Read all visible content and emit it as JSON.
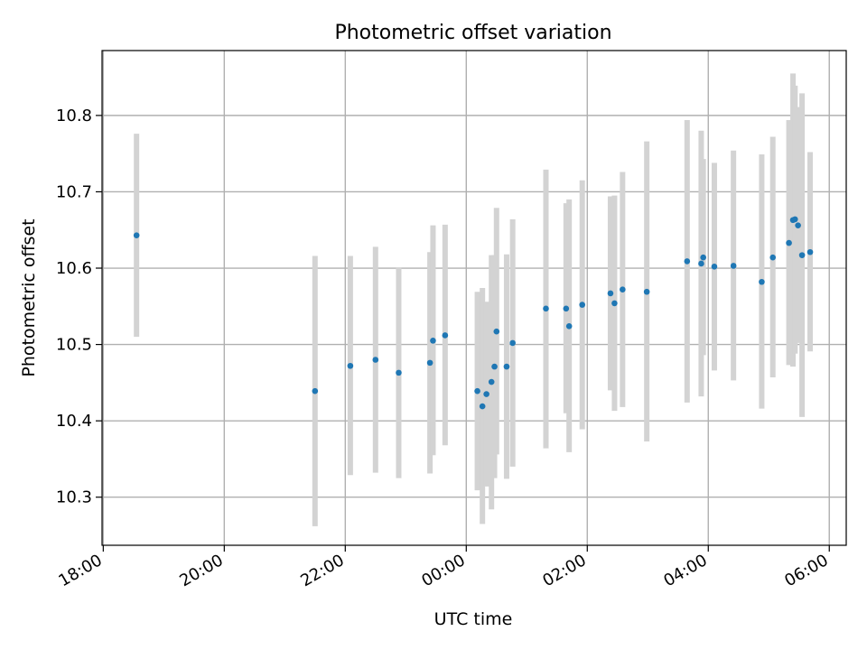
{
  "chart_data": {
    "type": "scatter",
    "title": "Photometric offset variation",
    "xlabel": "UTC time",
    "ylabel": "Photometric offset",
    "x_tick_labels": [
      "18:00",
      "20:00",
      "22:00",
      "00:00",
      "02:00",
      "04:00",
      "06:00"
    ],
    "x_tick_hours": [
      0,
      2,
      4,
      6,
      8,
      10,
      12
    ],
    "x_origin": "18:00",
    "xlim_hours": [
      -0.02,
      12.28
    ],
    "y_ticks": [
      10.3,
      10.4,
      10.5,
      10.6,
      10.7,
      10.8
    ],
    "ylim": [
      10.237,
      10.885
    ],
    "grid": true,
    "colors": {
      "points": "#1f77b4",
      "errorbars": "#d3d3d3",
      "grid": "#b0b0b0"
    },
    "points": [
      {
        "t": "18:33",
        "y": 10.643,
        "lo": 10.51,
        "hi": 10.776
      },
      {
        "t": "21:30",
        "y": 10.439,
        "lo": 10.262,
        "hi": 10.616
      },
      {
        "t": "22:05",
        "y": 10.472,
        "lo": 10.329,
        "hi": 10.616
      },
      {
        "t": "22:30",
        "y": 10.48,
        "lo": 10.332,
        "hi": 10.628
      },
      {
        "t": "22:53",
        "y": 10.463,
        "lo": 10.325,
        "hi": 10.601
      },
      {
        "t": "23:24",
        "y": 10.476,
        "lo": 10.331,
        "hi": 10.621
      },
      {
        "t": "23:27",
        "y": 10.505,
        "lo": 10.355,
        "hi": 10.656
      },
      {
        "t": "23:39",
        "y": 10.512,
        "lo": 10.368,
        "hi": 10.657
      },
      {
        "t": "00:11",
        "y": 10.439,
        "lo": 10.309,
        "hi": 10.569
      },
      {
        "t": "00:16",
        "y": 10.419,
        "lo": 10.265,
        "hi": 10.574
      },
      {
        "t": "00:20",
        "y": 10.435,
        "lo": 10.314,
        "hi": 10.556
      },
      {
        "t": "00:25",
        "y": 10.451,
        "lo": 10.284,
        "hi": 10.617
      },
      {
        "t": "00:28",
        "y": 10.471,
        "lo": 10.325,
        "hi": 10.617
      },
      {
        "t": "00:30",
        "y": 10.517,
        "lo": 10.356,
        "hi": 10.679
      },
      {
        "t": "00:40",
        "y": 10.471,
        "lo": 10.324,
        "hi": 10.618
      },
      {
        "t": "00:46",
        "y": 10.502,
        "lo": 10.34,
        "hi": 10.664
      },
      {
        "t": "01:19",
        "y": 10.547,
        "lo": 10.364,
        "hi": 10.729
      },
      {
        "t": "01:39",
        "y": 10.547,
        "lo": 10.41,
        "hi": 10.685
      },
      {
        "t": "01:42",
        "y": 10.524,
        "lo": 10.359,
        "hi": 10.69
      },
      {
        "t": "01:55",
        "y": 10.552,
        "lo": 10.389,
        "hi": 10.715
      },
      {
        "t": "02:23",
        "y": 10.567,
        "lo": 10.44,
        "hi": 10.694
      },
      {
        "t": "02:27",
        "y": 10.554,
        "lo": 10.413,
        "hi": 10.695
      },
      {
        "t": "02:35",
        "y": 10.572,
        "lo": 10.418,
        "hi": 10.726
      },
      {
        "t": "02:59",
        "y": 10.569,
        "lo": 10.373,
        "hi": 10.766
      },
      {
        "t": "03:39",
        "y": 10.609,
        "lo": 10.424,
        "hi": 10.794
      },
      {
        "t": "03:53",
        "y": 10.606,
        "lo": 10.432,
        "hi": 10.78
      },
      {
        "t": "03:55",
        "y": 10.614,
        "lo": 10.486,
        "hi": 10.743
      },
      {
        "t": "04:06",
        "y": 10.602,
        "lo": 10.466,
        "hi": 10.738
      },
      {
        "t": "04:25",
        "y": 10.603,
        "lo": 10.453,
        "hi": 10.754
      },
      {
        "t": "04:53",
        "y": 10.582,
        "lo": 10.416,
        "hi": 10.749
      },
      {
        "t": "05:04",
        "y": 10.614,
        "lo": 10.457,
        "hi": 10.772
      },
      {
        "t": "05:20",
        "y": 10.633,
        "lo": 10.473,
        "hi": 10.794
      },
      {
        "t": "05:24",
        "y": 10.663,
        "lo": 10.471,
        "hi": 10.855
      },
      {
        "t": "05:26",
        "y": 10.664,
        "lo": 10.488,
        "hi": 10.839
      },
      {
        "t": "05:29",
        "y": 10.656,
        "lo": 10.502,
        "hi": 10.811
      },
      {
        "t": "05:33",
        "y": 10.617,
        "lo": 10.405,
        "hi": 10.829
      },
      {
        "t": "05:41",
        "y": 10.621,
        "lo": 10.491,
        "hi": 10.752
      }
    ]
  }
}
